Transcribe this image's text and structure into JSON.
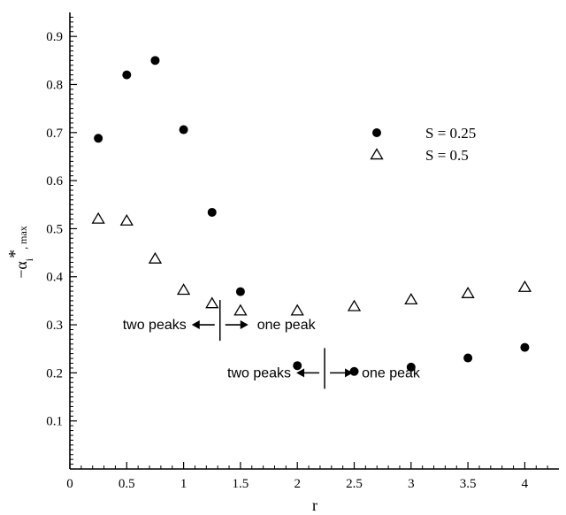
{
  "chart_data": {
    "type": "scatter",
    "xlabel": "r",
    "ylabel": "−α",
    "ylabel_sub": "i",
    "ylabel_sup": "*",
    "ylabel_subtail": ", max",
    "xlim": [
      0,
      4.3
    ],
    "ylim": [
      0,
      0.95
    ],
    "xticks": [
      0,
      0.5,
      1,
      1.5,
      2,
      2.5,
      3,
      3.5,
      4
    ],
    "xtick_labels": [
      "0",
      "0.5",
      "1",
      "1.5",
      "2",
      "2.5",
      "3",
      "3.5",
      "4"
    ],
    "yticks": [
      0.1,
      0.2,
      0.3,
      0.4,
      0.5,
      0.6,
      0.7,
      0.8,
      0.9
    ],
    "ytick_labels": [
      "0.1",
      "0.2",
      "0.3",
      "0.4",
      "0.5",
      "0.6",
      "0.7",
      "0.8",
      "0.9"
    ],
    "grid": false,
    "legend_position": "top-right",
    "series": [
      {
        "name": "S = 0.25",
        "marker": "filled-circle",
        "x": [
          0.25,
          0.5,
          0.75,
          1.0,
          1.25,
          1.5,
          2.0,
          2.5,
          3.0,
          3.5,
          4.0
        ],
        "y": [
          0.688,
          0.82,
          0.85,
          0.706,
          0.534,
          0.369,
          0.215,
          0.203,
          0.212,
          0.231,
          0.253
        ]
      },
      {
        "name": "S = 0.5",
        "marker": "open-triangle",
        "x": [
          0.25,
          0.5,
          0.75,
          1.0,
          1.25,
          1.5,
          2.0,
          2.5,
          3.0,
          3.5,
          4.0
        ],
        "y": [
          0.52,
          0.516,
          0.437,
          0.372,
          0.344,
          0.329,
          0.329,
          0.338,
          0.352,
          0.365,
          0.378
        ]
      }
    ],
    "annotations": [
      {
        "left_text": "two peaks",
        "right_text": "one peak",
        "divider_x": 1.32,
        "y": 0.3
      },
      {
        "left_text": "two peaks",
        "right_text": "one peak",
        "divider_x": 2.24,
        "y": 0.2
      }
    ]
  }
}
